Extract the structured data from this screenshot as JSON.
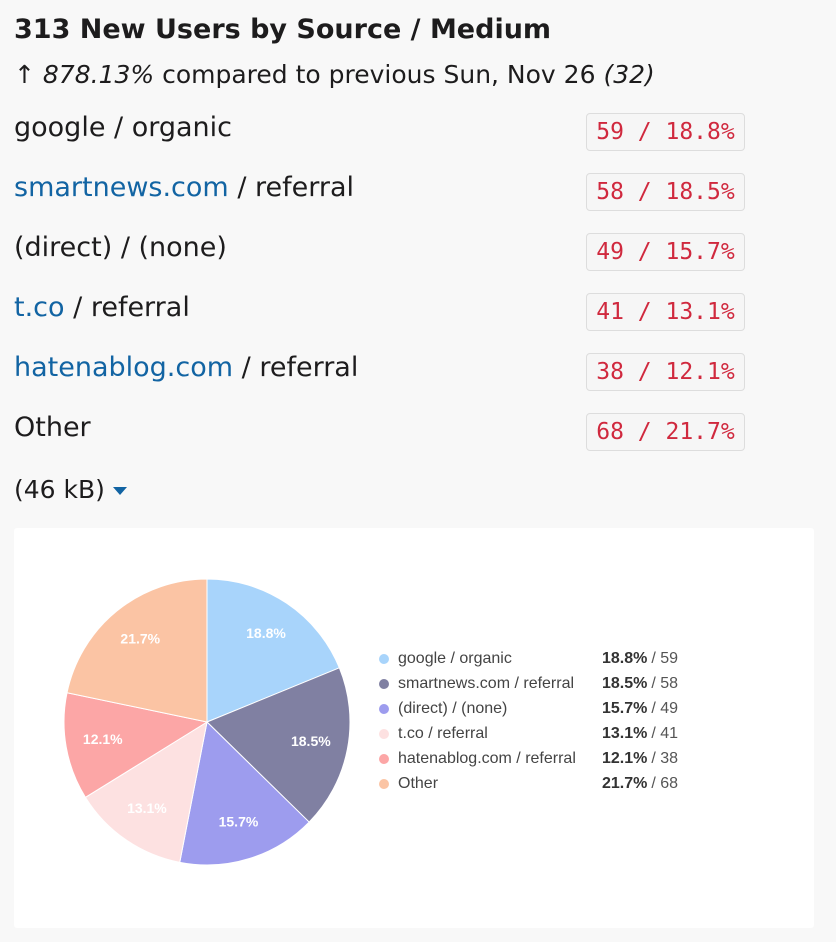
{
  "header": {
    "title": "313 New Users by Source / Medium",
    "arrow": "↑",
    "change": "878.13%",
    "comparison": "compared to previous Sun, Nov 26",
    "previous": "(32)"
  },
  "rows": [
    {
      "text": "google / organic",
      "badge": "59 / 18.8%"
    },
    {
      "link": "smartnews.com",
      "text": "/ referral",
      "badge": "58 / 18.5%"
    },
    {
      "text": "(direct) / (none)",
      "badge": "49 / 15.7%"
    },
    {
      "link": "t.co",
      "text": "/ referral",
      "badge": "41 / 13.1%"
    },
    {
      "link": "hatenablog.com",
      "text": "/ referral",
      "badge": "38 / 12.1%"
    },
    {
      "text": "Other",
      "badge": "68 / 21.7%"
    }
  ],
  "attachment": "(46 kB)",
  "chart_data": {
    "type": "pie",
    "categories": [
      "google / organic",
      "smartnews.com / referral",
      "(direct) / (none)",
      "t.co / referral",
      "hatenablog.com / referral",
      "Other"
    ],
    "values": [
      18.8,
      18.5,
      15.7,
      13.1,
      12.1,
      21.7
    ],
    "value_labels": [
      "18.8%",
      "18.5%",
      "15.7%",
      "13.1%",
      "12.1%",
      "21.7%"
    ],
    "counts": [
      "/ 59",
      "/ 58",
      "/ 49",
      "/ 41",
      "/ 38",
      "/ 68"
    ],
    "colors": [
      "#a8d4fb",
      "#8080a2",
      "#9d9cee",
      "#fde1e1",
      "#fca6a6",
      "#fbc4a4"
    ]
  }
}
